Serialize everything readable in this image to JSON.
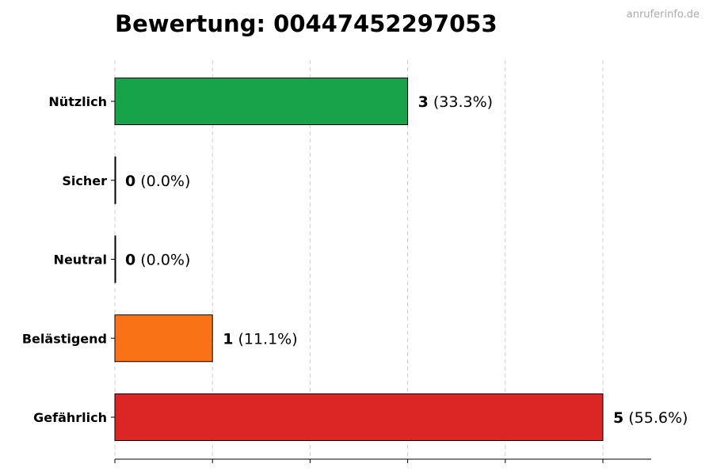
{
  "watermark": "anruferinfo.de",
  "chart_data": {
    "type": "bar",
    "orientation": "horizontal",
    "title": "Bewertung: 00447452297053",
    "xlabel": "",
    "ylabel": "",
    "xlim": [
      0,
      5.5
    ],
    "x_ticks": [
      0,
      1,
      2,
      3,
      4,
      5
    ],
    "grid": "vertical-dashed",
    "categories": [
      "Nützlich",
      "Sicher",
      "Neutral",
      "Belästigend",
      "Gefährlich"
    ],
    "values": [
      3,
      0,
      0,
      1,
      5
    ],
    "percent_labels": [
      "(33.3%)",
      "(0.0%)",
      "(0.0%)",
      "(11.1%)",
      "(55.6%)"
    ],
    "colors": [
      "#16a34a",
      "#3b82f6",
      "#9ca3af",
      "#f97316",
      "#dc2626"
    ]
  }
}
